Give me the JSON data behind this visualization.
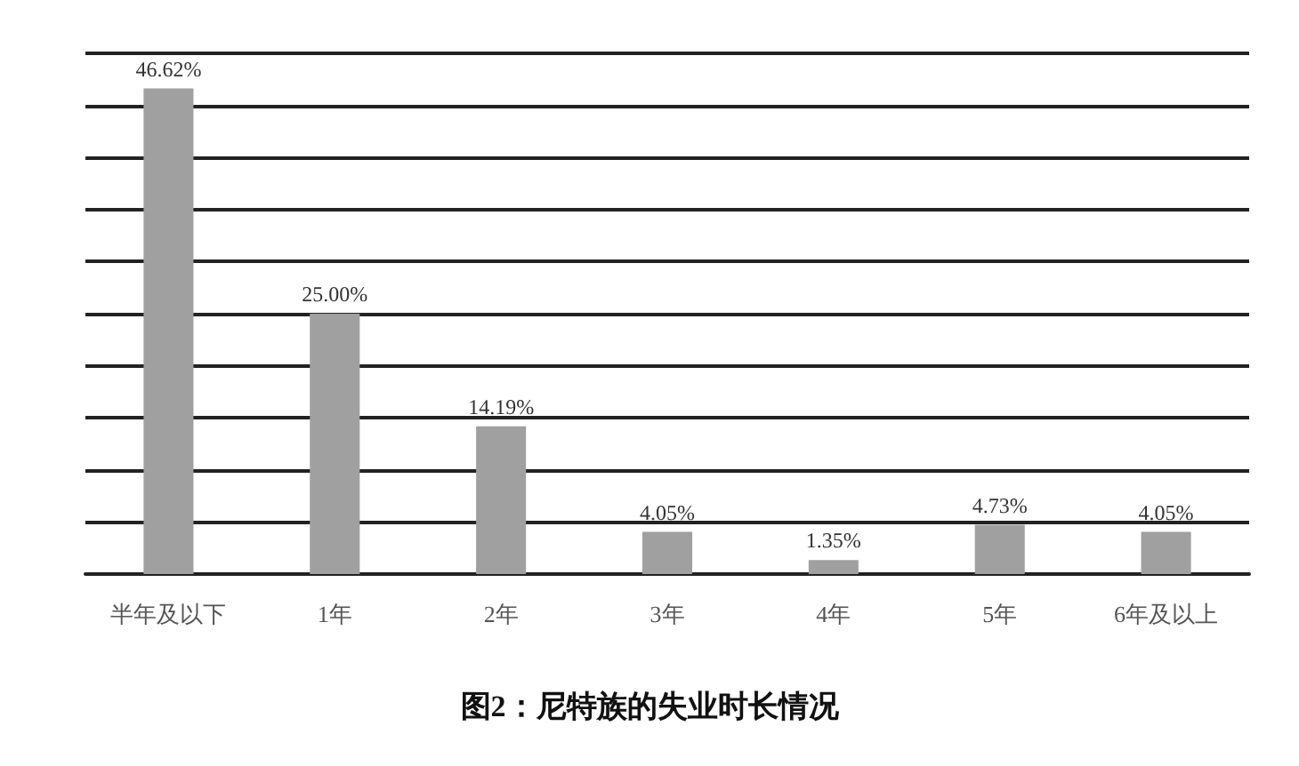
{
  "chart_data": {
    "type": "bar",
    "title": "图2：尼特族的失业时长情况",
    "categories": [
      "半年及以下",
      "1年",
      "2年",
      "3年",
      "4年",
      "5年",
      "6年及以上"
    ],
    "values": [
      46.62,
      25.0,
      14.19,
      4.05,
      1.35,
      4.73,
      4.05
    ],
    "value_labels": [
      "46.62%",
      "25.00%",
      "14.19%",
      "4.05%",
      "1.35%",
      "4.73%",
      "4.05%"
    ],
    "color": "#a0a0a0",
    "ylim": [
      0,
      50
    ],
    "yticks": [
      {
        "value": 0,
        "label": null
      },
      {
        "value": 5,
        "label": null
      },
      {
        "value": 10,
        "label": null
      },
      {
        "value": 15,
        "label": null
      },
      {
        "value": 20,
        "label": null
      },
      {
        "value": 25,
        "label": null
      },
      {
        "value": 30,
        "label": null
      },
      {
        "value": 35,
        "label": null
      },
      {
        "value": 40,
        "label": null
      },
      {
        "value": 45,
        "label": null
      },
      {
        "value": 50,
        "label": null
      }
    ],
    "grid": "y",
    "tick_labels": "x"
  }
}
